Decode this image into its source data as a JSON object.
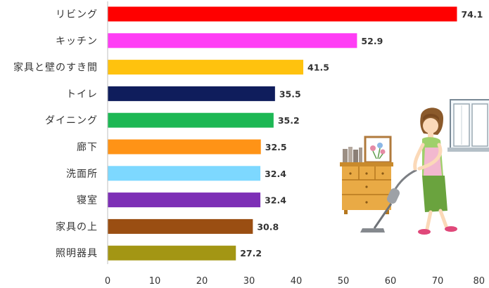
{
  "chart_data": {
    "type": "bar",
    "orientation": "horizontal",
    "categories": [
      "リビング",
      "キッチン",
      "家具と壁のすき間",
      "トイレ",
      "ダイニング",
      "廊下",
      "洗面所",
      "寝室",
      "家具の上",
      "照明器具"
    ],
    "values": [
      74.1,
      52.9,
      41.5,
      35.5,
      35.2,
      32.5,
      32.4,
      32.4,
      30.8,
      27.2
    ],
    "value_labels": [
      "74.1",
      "52.9",
      "41.5",
      "35.5",
      "35.2",
      "32.5",
      "32.4",
      "32.4",
      "30.8",
      "27.2"
    ],
    "colors": [
      "#ff0000",
      "#ff3df5",
      "#ffc20e",
      "#0f1d5c",
      "#1db854",
      "#ff9316",
      "#7dd8ff",
      "#7d2fb6",
      "#9a4e12",
      "#a39614"
    ],
    "xlim": [
      0,
      80
    ],
    "xticks": [
      "0",
      "10",
      "20",
      "30",
      "40",
      "50",
      "60",
      "70",
      "80"
    ],
    "title": "",
    "xlabel": "",
    "ylabel": "",
    "grid": false,
    "legend": "none"
  },
  "illustration": {
    "description_icon": "woman-vacuuming-illustration"
  }
}
